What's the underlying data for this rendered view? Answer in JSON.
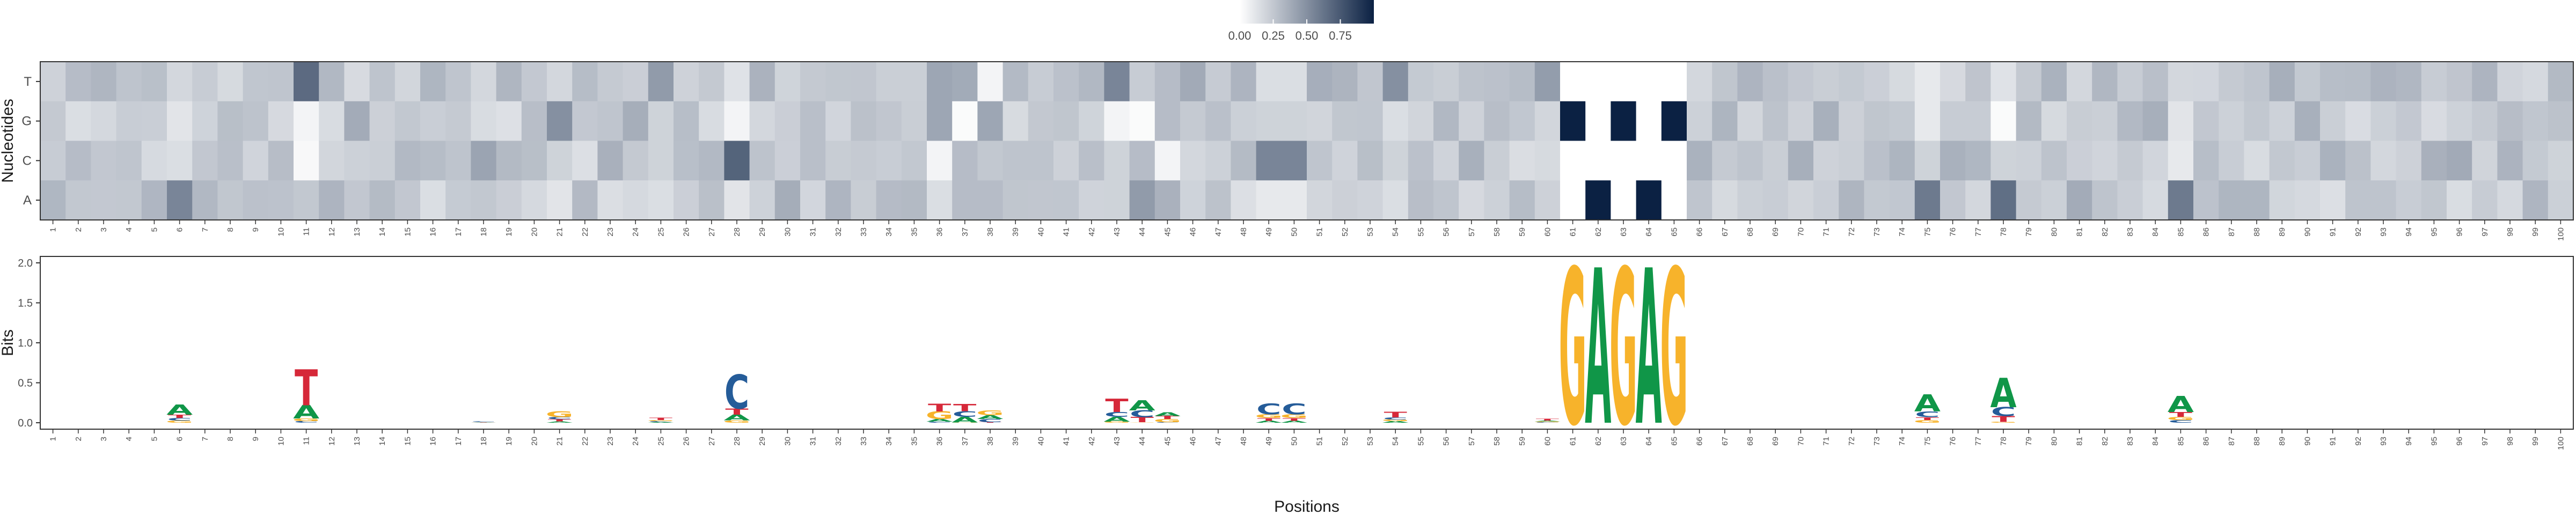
{
  "chart_data": [
    {
      "type": "heatmap",
      "ylabel": "Nucleotides",
      "row_labels": [
        "A",
        "C",
        "G",
        "T"
      ],
      "legend_ticks": [
        "0.00",
        "0.25",
        "0.50",
        "0.75"
      ],
      "colors": {
        "low": "#ffffff",
        "high": "#0b2143"
      },
      "zlim": [
        0,
        1
      ],
      "positions_range": [
        1,
        100
      ],
      "fixed_motif": {
        "61": "G",
        "62": "A",
        "63": "G",
        "64": "A",
        "65": "G"
      },
      "highlights": {
        "2": {
          "A": 0.25,
          "C": 0.3,
          "G": 0.15,
          "T": 0.3
        },
        "6": {
          "A": 0.55,
          "C": 0.15,
          "G": 0.12,
          "T": 0.18
        },
        "11": {
          "A": 0.25,
          "C": 0.03,
          "G": 0.05,
          "T": 0.67
        },
        "21": {
          "A": 0.12,
          "C": 0.2,
          "G": 0.5,
          "T": 0.18
        },
        "25": {
          "A": 0.15,
          "C": 0.2,
          "G": 0.2,
          "T": 0.45
        },
        "28": {
          "A": 0.12,
          "C": 0.7,
          "G": 0.05,
          "T": 0.13
        },
        "36": {
          "A": 0.15,
          "C": 0.05,
          "G": 0.4,
          "T": 0.4
        },
        "37": {
          "A": 0.3,
          "C": 0.3,
          "G": 0.02,
          "T": 0.38
        },
        "38": {
          "A": 0.3,
          "C": 0.25,
          "G": 0.4,
          "T": 0.05
        },
        "43": {
          "A": 0.2,
          "C": 0.2,
          "G": 0.05,
          "T": 0.55
        },
        "44": {
          "A": 0.45,
          "C": 0.3,
          "G": 0.02,
          "T": 0.23
        },
        "45": {
          "A": 0.35,
          "C": 0.05,
          "G": 0.3,
          "T": 0.3
        },
        "49": {
          "A": 0.1,
          "C": 0.55,
          "G": 0.2,
          "T": 0.15
        },
        "50": {
          "A": 0.1,
          "C": 0.55,
          "G": 0.2,
          "T": 0.15
        },
        "54": {
          "A": 0.15,
          "C": 0.2,
          "G": 0.15,
          "T": 0.5
        },
        "75": {
          "A": 0.6,
          "C": 0.2,
          "G": 0.1,
          "T": 0.1
        },
        "78": {
          "A": 0.65,
          "C": 0.2,
          "G": 0.02,
          "T": 0.13
        },
        "85": {
          "A": 0.6,
          "C": 0.1,
          "G": 0.12,
          "T": 0.18
        }
      }
    },
    {
      "type": "sequence_logo",
      "ylabel": "Bits",
      "xlabel": "Positions",
      "ylim": [
        0,
        2
      ],
      "yticks": [
        "0.0",
        "0.5",
        "1.0",
        "1.5",
        "2.0"
      ],
      "x": [
        1,
        100
      ],
      "letter_colors": {
        "A": "#109648",
        "C": "#255c99",
        "G": "#f7b32b",
        "T": "#d62839"
      }
    }
  ]
}
